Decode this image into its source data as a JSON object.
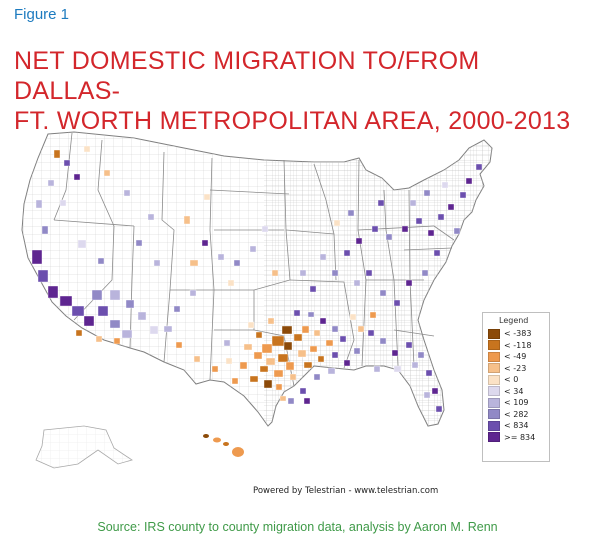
{
  "figure_label": "Figure 1",
  "title_line1": "NET DOMESTIC MIGRATION TO/FROM DALLAS-",
  "title_line2": "FT. WORTH METROPOLITAN AREA, 2000-2013",
  "map": {
    "base_fill": "#ffffff",
    "border_color": "#9a9a9a"
  },
  "legend": {
    "title": "Legend",
    "items": [
      {
        "label": "< -383",
        "color": "#8c4a08"
      },
      {
        "label": "< -118",
        "color": "#c8741e"
      },
      {
        "label": "< -49",
        "color": "#ee9a4f"
      },
      {
        "label": "< -23",
        "color": "#f6c08a"
      },
      {
        "label": "< 0",
        "color": "#fbe2c6"
      },
      {
        "label": "< 34",
        "color": "#ddd9ee"
      },
      {
        "label": "< 109",
        "color": "#b9b4dc"
      },
      {
        "label": "< 282",
        "color": "#9189c6"
      },
      {
        "label": "< 834",
        "color": "#6c4fae"
      },
      {
        "label": ">= 834",
        "color": "#5e2590"
      }
    ]
  },
  "credit": "Powered by Telestrian - www.telestrian.com",
  "source": "Source: IRS county to county migration data, analysis by Aaron M. Renn"
}
